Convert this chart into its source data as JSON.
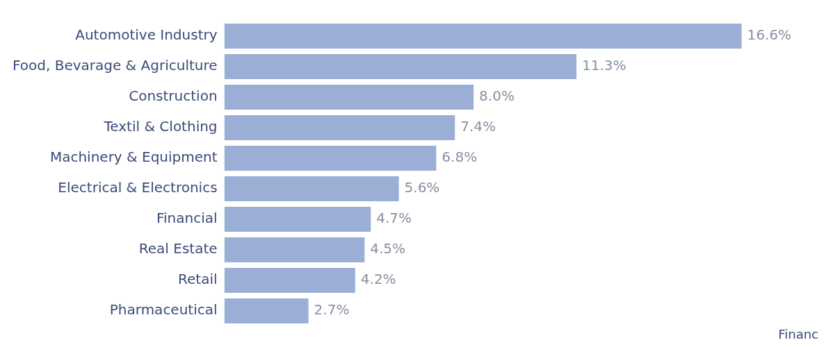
{
  "chart_data": {
    "type": "bar",
    "orientation": "horizontal",
    "categories": [
      "Automotive Industry",
      "Food, Bevarage & Agriculture",
      "Construction",
      "Textil & Clothing",
      "Machinery & Equipment",
      "Electrical & Electronics",
      "Financial",
      "Real Estate",
      "Retail",
      "Pharmaceutical"
    ],
    "values": [
      16.6,
      11.3,
      8.0,
      7.4,
      6.8,
      5.6,
      4.7,
      4.5,
      4.2,
      2.7
    ],
    "value_labels": [
      "16.6%",
      "11.3%",
      "8.0%",
      "7.4%",
      "6.8%",
      "5.6%",
      "4.7%",
      "4.5%",
      "4.2%",
      "2.7%"
    ],
    "color": "#9aaed6",
    "annotations": [
      "Financ"
    ],
    "grid": false,
    "legend": false
  }
}
